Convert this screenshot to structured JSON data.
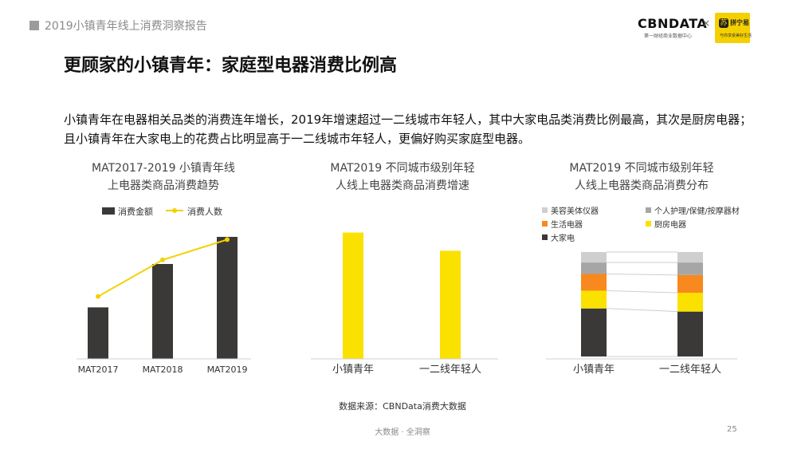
{
  "header": {
    "text": "2019小镇青年线上消费洞察报告"
  },
  "logos": {
    "cbn_text": "CBNDATA",
    "cbn_sub": "第一财经商业数据中心",
    "times": "×",
    "partner_icon": "苏",
    "partner_text": "拼宁易",
    "partner_sub": "与你享受美好生活"
  },
  "title": "更顾家的小镇青年：家庭型电器消费比例高",
  "description": "小镇青年在电器相关品类的消费连年增长，2019年增速超过一二线城市年轻人，其中大家电品类消费比例最高，其次是厨房电器；且小镇青年在大家电上的花费占比明显高于一二线城市年轻人，更偏好购买家庭型电器。",
  "chart_data": [
    {
      "type": "bar+line",
      "title_lines": [
        "MAT2017-2019 小镇青年线",
        "上电器类商品消费趋势"
      ],
      "categories": [
        "MAT2017",
        "MAT2018",
        "MAT2019"
      ],
      "series": [
        {
          "name": "消费金额",
          "kind": "bar",
          "color": "#3b3838",
          "values": [
            0.38,
            0.7,
            0.9
          ]
        },
        {
          "name": "消费人数",
          "kind": "line",
          "color": "#f5d000",
          "values": [
            0.46,
            0.73,
            0.88
          ]
        }
      ],
      "ylim": [
        0,
        1
      ],
      "grid": false,
      "legend": "top"
    },
    {
      "type": "bar",
      "title_lines": [
        "MAT2019 不同城市级别年轻",
        "人线上电器类商品消费增速"
      ],
      "categories": [
        "小镇青年",
        "一二线年轻人"
      ],
      "values": [
        0.9,
        0.77
      ],
      "colors": [
        "#fae100",
        "#fae100"
      ],
      "ylim": [
        0,
        1
      ],
      "grid": false
    },
    {
      "type": "stacked_bar_100",
      "title_lines": [
        "MAT2019 不同城市级别年轻",
        "人线上电器类商品消费分布"
      ],
      "categories": [
        "小镇青年",
        "一二线年轻人"
      ],
      "series": [
        {
          "name": "大家电",
          "color": "#3b3838",
          "values": [
            46,
            43
          ]
        },
        {
          "name": "厨房电器",
          "color": "#fae100",
          "values": [
            17,
            18
          ]
        },
        {
          "name": "生活电器",
          "color": "#f7891f",
          "values": [
            16,
            17
          ]
        },
        {
          "name": "个人护理/保健/按摩器材",
          "color": "#a6a6a6",
          "values": [
            11,
            12
          ]
        },
        {
          "name": "美容美体仪器",
          "color": "#cfcfcf",
          "values": [
            10,
            10
          ]
        }
      ],
      "legend_order": [
        "美容美体仪器",
        "个人护理/保健/按摩器材",
        "生活电器",
        "厨房电器",
        "大家电"
      ],
      "legend": "top",
      "grid": false
    }
  ],
  "footer": {
    "source": "数据来源：CBNData消费大数据",
    "center": "大数据 · 全洞察",
    "page": "25"
  }
}
